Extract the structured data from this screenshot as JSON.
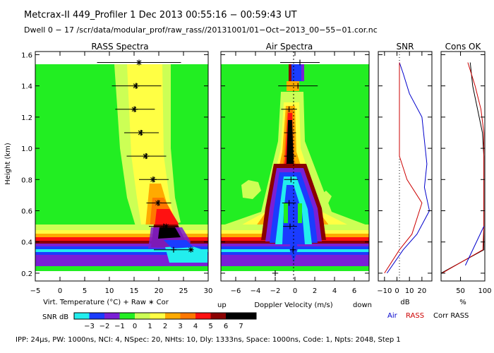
{
  "header": {
    "line1": "Metcrax-II  449_Profiler    1 Dec 2013   00:55:16 − 00:59:43 UT",
    "line2": "Dwell  0 − 17   /scr/data/modular_prof/raw_rass//20131001/01−Oct−2013_00−55−01.cor.nc"
  },
  "footer": {
    "params": "IPP:  24μs,  PW: 1000ns,  NCI: 4,  NSpec: 20, NHts: 10,  Dly: 1333ns,  Space: 1000ns,  Code: 1,  Npts: 2048,  Step 1"
  },
  "colors": {
    "green": "#22ee22",
    "cyan": "#22eeee",
    "blue": "#1a3cff",
    "purple": "#7a1fd6",
    "yellowgreen": "#ccff55",
    "yellow": "#ffff44",
    "orange": "#ffaa00",
    "darkorange": "#ff7700",
    "red": "#ff1111",
    "darkred": "#8a0000",
    "black": "#000000"
  },
  "chart_data": [
    {
      "type": "heatmap",
      "title": "RASS Spectra",
      "xlabel": "Virt. Temperature (°C)  + Raw  ∗ Cor",
      "ylabel": "Height (km)",
      "xlim": [
        -5,
        30
      ],
      "ylim": [
        0.15,
        1.62
      ],
      "xticks": [
        "−5",
        "0",
        "5",
        "10",
        "15",
        "20",
        "25",
        "30"
      ],
      "yticks": [
        "0.2",
        "0.4",
        "0.6",
        "0.8",
        "1.0",
        "1.2",
        "1.4",
        "1.6"
      ],
      "raw": [
        {
          "h": 1.55,
          "t": 16.0,
          "err": 8.5
        },
        {
          "h": 1.4,
          "t": 15.5,
          "err": 5.0
        },
        {
          "h": 1.25,
          "t": 15.2,
          "err": 4.0
        },
        {
          "h": 1.1,
          "t": 16.5,
          "err": 3.5
        },
        {
          "h": 0.95,
          "t": 17.5,
          "err": 4.0
        },
        {
          "h": 0.8,
          "t": 19.0,
          "err": 3.0
        },
        {
          "h": 0.65,
          "t": 20.0,
          "err": 2.5
        },
        {
          "h": 0.5,
          "t": 21.0,
          "err": 3.0
        },
        {
          "h": 0.35,
          "t": 23.0,
          "err": 4.0
        }
      ],
      "cor": [
        {
          "h": 1.55,
          "t": 16.0
        },
        {
          "h": 1.4,
          "t": 15.3
        },
        {
          "h": 1.25,
          "t": 15.0
        },
        {
          "h": 1.1,
          "t": 16.3
        },
        {
          "h": 0.95,
          "t": 17.3
        },
        {
          "h": 0.8,
          "t": 18.8
        },
        {
          "h": 0.65,
          "t": 19.8
        },
        {
          "h": 0.5,
          "t": 21.5
        },
        {
          "h": 0.35,
          "t": 26.5
        }
      ]
    },
    {
      "type": "heatmap",
      "title": "Air Spectra",
      "xlabel": "Doppler Velocity (m/s)",
      "xlabel_left": "up",
      "xlabel_right": "down",
      "xlim": [
        -7.5,
        7.5
      ],
      "ylim": [
        0.15,
        1.62
      ],
      "xticks": [
        "−6",
        "−4",
        "−2",
        "0",
        "2",
        "4",
        "6"
      ],
      "yticks": [
        "0.2",
        "0.4",
        "0.6",
        "0.8",
        "1.0",
        "1.2",
        "1.4",
        "1.6"
      ],
      "points": [
        {
          "h": 1.55,
          "v": 0.5,
          "err": 2.0
        },
        {
          "h": 1.4,
          "v": 0.3,
          "err": 2.0
        },
        {
          "h": 1.25,
          "v": -0.6,
          "err": 0.8
        },
        {
          "h": 1.1,
          "v": -0.5,
          "err": 0.6
        },
        {
          "h": 0.95,
          "v": -0.5,
          "err": 0.6
        },
        {
          "h": 0.8,
          "v": -0.4,
          "err": 0.7
        },
        {
          "h": 0.65,
          "v": -0.6,
          "err": 0.7
        },
        {
          "h": 0.5,
          "v": -0.5,
          "err": 0.7
        },
        {
          "h": 0.35,
          "v": -0.2,
          "err": 0.3
        },
        {
          "h": 0.2,
          "v": -2.0,
          "err": 0.3
        }
      ]
    },
    {
      "type": "line",
      "title": "SNR",
      "xlabel": "dB",
      "xlim": [
        -15,
        28
      ],
      "ylim": [
        0.15,
        1.62
      ],
      "xticks": [
        "−10",
        "0",
        "10",
        "20"
      ],
      "series": [
        {
          "name": "Air",
          "color": "#0000cc",
          "x": [
            -8,
            5,
            16,
            26,
            22,
            24,
            22,
            20,
            10,
            5,
            2
          ],
          "y": [
            0.2,
            0.35,
            0.45,
            0.6,
            0.75,
            0.9,
            1.05,
            1.2,
            1.35,
            1.48,
            1.55
          ]
        },
        {
          "name": "RASS",
          "color": "#cc0000",
          "x": [
            -10,
            2,
            12,
            20,
            8,
            2,
            2,
            2,
            2,
            2,
            2
          ],
          "y": [
            0.2,
            0.35,
            0.45,
            0.65,
            0.8,
            0.95,
            1.1,
            1.25,
            1.4,
            1.5,
            1.55
          ]
        }
      ]
    },
    {
      "type": "line",
      "title": "Cons OK",
      "xlabel": "%",
      "xlim": [
        10,
        100
      ],
      "ylim": [
        0.15,
        1.62
      ],
      "xticks": [
        "50",
        "100"
      ],
      "legend_third": "Corr RASS",
      "series": [
        {
          "name": "Air",
          "color": "#000000",
          "x": [
            10,
            98,
            98,
            98,
            98,
            98,
            95,
            85,
            75,
            70
          ],
          "y": [
            0.2,
            0.35,
            0.5,
            0.65,
            0.8,
            0.95,
            1.1,
            1.25,
            1.4,
            1.55
          ]
        },
        {
          "name": "RASS",
          "color": "#cc0000",
          "x": [
            12,
            96,
            98,
            98,
            98,
            98,
            98,
            92,
            80,
            65
          ],
          "y": [
            0.2,
            0.35,
            0.5,
            0.65,
            0.8,
            0.95,
            1.1,
            1.25,
            1.4,
            1.55
          ]
        },
        {
          "name": "Corr",
          "color": "#0000cc",
          "x": [
            60,
            98
          ],
          "y": [
            0.25,
            0.5
          ]
        }
      ]
    }
  ],
  "colorbar": {
    "label": "SNR dB",
    "ticks": [
      "−3",
      "−2",
      "−1",
      "0",
      "1",
      "2",
      "3",
      "4",
      "5",
      "6",
      "7"
    ],
    "colors": [
      "#22eeee",
      "#1a3cff",
      "#7a1fd6",
      "#22ee22",
      "#ccff55",
      "#ffff44",
      "#ffaa00",
      "#ff7700",
      "#ff1111",
      "#8a0000",
      "#000000",
      "#000000"
    ]
  }
}
